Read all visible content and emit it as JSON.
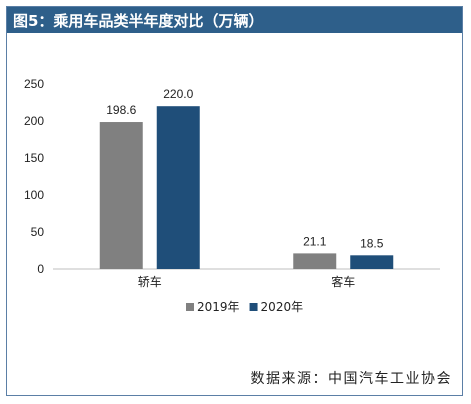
{
  "title": "图5：乘用车品类半年度对比（万辆）",
  "source": "数据来源：中国汽车工业协会",
  "colors": {
    "header": "#2e5f8a",
    "series_2019": "#808080",
    "series_2020": "#1f4e79",
    "frame": "#5b7fa6"
  },
  "chart_data": {
    "type": "bar",
    "title": "",
    "xlabel": "",
    "ylabel": "",
    "categories": [
      "轿车",
      "客车"
    ],
    "series": [
      {
        "name": "2019年",
        "values": [
          198.6,
          21.1
        ]
      },
      {
        "name": "2020年",
        "values": [
          220.0,
          18.5
        ]
      }
    ],
    "value_labels": [
      [
        "198.6",
        "21.1"
      ],
      [
        "220.0",
        "18.5"
      ]
    ],
    "ylim": [
      0,
      250
    ],
    "yticks": [
      0,
      50,
      100,
      150,
      200,
      250
    ],
    "ytick_labels": [
      "0",
      "50",
      "100",
      "150",
      "200",
      "250"
    ],
    "grid": false,
    "legend_position": "bottom"
  }
}
